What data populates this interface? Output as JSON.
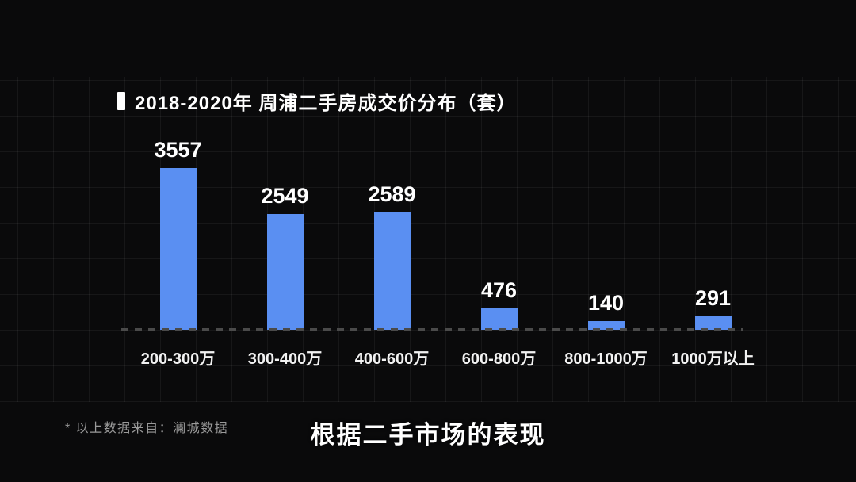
{
  "chart_data": {
    "type": "bar",
    "title": "2018-2020年 周浦二手房成交价分布（套）",
    "categories": [
      "200-300万",
      "300-400万",
      "400-600万",
      "600-800万",
      "800-1000万",
      "1000万以上"
    ],
    "values": [
      3557,
      2549,
      2589,
      476,
      140,
      291
    ],
    "xlabel": "",
    "ylabel": "",
    "ylim": [
      0,
      3900
    ],
    "bar_color": "#5a8ff2",
    "value_labels_shown": true,
    "axis_style": "dashed-baseline-only",
    "grid": "faint-background-grid",
    "legend": "none"
  },
  "footer": {
    "source_note": "* 以上数据来自：澜城数据",
    "caption": "根据二手市场的表现"
  }
}
